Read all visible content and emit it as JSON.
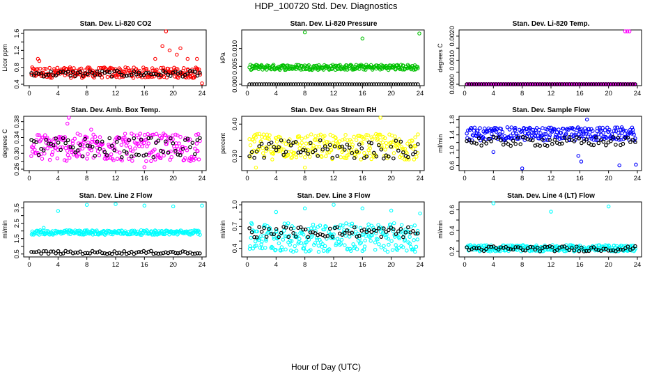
{
  "title": "HDP_100720  Std. Dev. Diagnostics",
  "xlabel": "Hour of Day (UTC)",
  "chart_data": [
    {
      "type": "scatter",
      "title": "Stan. Dev. Li-820 CO2",
      "ylabel": "Licor ppm",
      "color": "#ff0000",
      "secondary_color": "#000000",
      "xlim": [
        0,
        24
      ],
      "ylim": [
        0.4,
        1.65
      ],
      "xticks": [
        0,
        4,
        8,
        12,
        16,
        20,
        24
      ],
      "yticks": [
        0.4,
        0.6,
        0.8,
        1.0,
        1.2,
        1.4,
        1.6
      ],
      "ytick_labels": [
        "0.4",
        "",
        "0.8",
        "",
        "1.2",
        "",
        "1.6"
      ],
      "series_band": [
        0.55,
        0.8
      ],
      "secondary_band": [
        0.58,
        0.72
      ],
      "outliers": [
        [
          1.2,
          1.0
        ],
        [
          1.4,
          0.95
        ],
        [
          17.5,
          1.0
        ],
        [
          18.5,
          1.3
        ],
        [
          19,
          1.65
        ],
        [
          19.5,
          1.2
        ],
        [
          20.5,
          1.1
        ],
        [
          21,
          1.25
        ],
        [
          22,
          1.0
        ],
        [
          23.3,
          1.0
        ],
        [
          24,
          0.42
        ]
      ]
    },
    {
      "type": "scatter",
      "title": "Stan. Dev. Li-820 Pressure",
      "ylabel": "kPa",
      "color": "#00c000",
      "secondary_color": "#000000",
      "xlim": [
        0,
        24
      ],
      "ylim": [
        0,
        0.0148
      ],
      "xticks": [
        0,
        4,
        8,
        12,
        16,
        20,
        24
      ],
      "yticks": [
        0,
        0.005,
        0.01
      ],
      "ytick_labels": [
        "0.000",
        "0.005",
        "0.010"
      ],
      "series_band": [
        0.004,
        0.0055
      ],
      "secondary_band": [
        0,
        0.0
      ],
      "outliers": [
        [
          8,
          0.0145
        ],
        [
          16,
          0.0128
        ],
        [
          23.9,
          0.0142
        ]
      ]
    },
    {
      "type": "scatter",
      "title": "Stan. Dev. Li-820 Temp.",
      "ylabel": "degrees C",
      "color": "#ff00ff",
      "secondary_color": "#000000",
      "xlim": [
        0,
        24
      ],
      "ylim": [
        0,
        0.0022
      ],
      "xticks": [
        0,
        4,
        8,
        12,
        16,
        20,
        24
      ],
      "yticks": [
        0,
        0.0005,
        0.001,
        0.0015,
        0.002
      ],
      "ytick_labels": [
        "0.0000",
        "",
        "0.0010",
        "",
        "0.0020"
      ],
      "series_band": [
        0,
        0
      ],
      "secondary_band": [
        0,
        0
      ],
      "outliers": [
        [
          22.3,
          0.0022
        ],
        [
          22.6,
          0.0022
        ],
        [
          22.9,
          0.0022
        ]
      ]
    },
    {
      "type": "scatter",
      "title": "Stan. Dev. Amb. Box Temp.",
      "ylabel": "degrees C",
      "color": "#ff00ff",
      "secondary_color": "#000000",
      "xlim": [
        0,
        24
      ],
      "ylim": [
        0.26,
        0.39
      ],
      "xticks": [
        0,
        4,
        8,
        12,
        16,
        20,
        24
      ],
      "yticks": [
        0.26,
        0.28,
        0.3,
        0.32,
        0.34,
        0.36,
        0.38
      ],
      "ytick_labels": [
        "0.26",
        "",
        "0.30",
        "",
        "0.34",
        "",
        "0.38"
      ],
      "series_band": [
        0.28,
        0.35
      ],
      "secondary_band": [
        0.29,
        0.34
      ],
      "outliers": [
        [
          5.5,
          0.39
        ],
        [
          5.3,
          0.375
        ],
        [
          16,
          0.265
        ],
        [
          8.6,
          0.36
        ]
      ]
    },
    {
      "type": "scatter",
      "title": "Stan. Dev. Gas Stream RH",
      "ylabel": "percent",
      "color": "#ffff00",
      "secondary_color": "#000000",
      "xlim": [
        0,
        24
      ],
      "ylim": [
        0.26,
        0.42
      ],
      "xticks": [
        0,
        4,
        8,
        12,
        16,
        20,
        24
      ],
      "yticks": [
        0.3,
        0.35,
        0.4
      ],
      "ytick_labels": [
        "0.30",
        "",
        "0.40"
      ],
      "series_band": [
        0.29,
        0.37
      ],
      "secondary_band": [
        0.29,
        0.35
      ],
      "outliers": [
        [
          18.5,
          0.42
        ],
        [
          1.2,
          0.265
        ],
        [
          8,
          0.265
        ]
      ]
    },
    {
      "type": "scatter",
      "title": "Stan. Dev. Sample Flow",
      "ylabel": "ml/min",
      "color": "#0000ff",
      "secondary_color": "#000000",
      "xlim": [
        0,
        24
      ],
      "ylim": [
        0.5,
        1.85
      ],
      "xticks": [
        0,
        4,
        8,
        12,
        16,
        20,
        24
      ],
      "yticks": [
        0.6,
        0.8,
        1.0,
        1.2,
        1.4,
        1.6,
        1.8
      ],
      "ytick_labels": [
        "0.6",
        "",
        "1.0",
        "",
        "1.4",
        "",
        "1.8"
      ],
      "series_band": [
        1.25,
        1.6
      ],
      "secondary_band": [
        1.1,
        1.35
      ],
      "outliers": [
        [
          8,
          0.52
        ],
        [
          15.8,
          0.85
        ],
        [
          16.2,
          0.7
        ],
        [
          21.5,
          0.6
        ],
        [
          23.8,
          0.62
        ],
        [
          4,
          0.95
        ],
        [
          17,
          1.8
        ]
      ]
    },
    {
      "type": "scatter",
      "title": "Stan. Dev. Line 2 Flow",
      "ylabel": "ml/min",
      "color": "#00ffff",
      "secondary_color": "#000000",
      "xlim": [
        0,
        24
      ],
      "ylim": [
        0.4,
        3.8
      ],
      "xticks": [
        0,
        4,
        8,
        12,
        16,
        20,
        24
      ],
      "yticks": [
        0.5,
        1.0,
        1.5,
        2.0,
        2.5,
        3.0,
        3.5
      ],
      "ytick_labels": [
        "0.5",
        "",
        "1.5",
        "",
        "2.5",
        "",
        "3.5"
      ],
      "series_band": [
        1.75,
        2.05
      ],
      "secondary_band": [
        0.5,
        0.7
      ],
      "outliers": [
        [
          4,
          3.3
        ],
        [
          8,
          3.7
        ],
        [
          12,
          3.75
        ],
        [
          16,
          3.65
        ],
        [
          20,
          3.6
        ],
        [
          24,
          3.65
        ],
        [
          2,
          2.2
        ]
      ]
    },
    {
      "type": "scatter",
      "title": "Stan. Dev. Line 3 Flow",
      "ylabel": "ml/min",
      "color": "#00ffff",
      "secondary_color": "#000000",
      "xlim": [
        0,
        24
      ],
      "ylim": [
        0.3,
        1.02
      ],
      "xticks": [
        0,
        4,
        8,
        12,
        16,
        20,
        24
      ],
      "yticks": [
        0.4,
        0.5,
        0.6,
        0.7,
        0.8,
        0.9,
        1.0
      ],
      "ytick_labels": [
        "0.4",
        "",
        "",
        "0.7",
        "",
        "",
        "1.0"
      ],
      "series_band": [
        0.35,
        0.75
      ],
      "secondary_band": [
        0.55,
        0.7
      ],
      "outliers": [
        [
          4,
          0.9
        ],
        [
          8,
          0.95
        ],
        [
          12,
          1.0
        ],
        [
          16,
          0.95
        ],
        [
          20,
          0.92
        ],
        [
          24,
          0.88
        ]
      ]
    },
    {
      "type": "scatter",
      "title": "Stan. Dev. Line 4 (LT) Flow",
      "ylabel": "ml/min",
      "color": "#00ffff",
      "secondary_color": "#000000",
      "xlim": [
        0,
        24
      ],
      "ylim": [
        0.16,
        0.66
      ],
      "xticks": [
        0,
        4,
        8,
        12,
        16,
        20,
        24
      ],
      "yticks": [
        0.2,
        0.3,
        0.4,
        0.5,
        0.6
      ],
      "ytick_labels": [
        "0.2",
        "",
        "0.4",
        "",
        "0.6"
      ],
      "series_band": [
        0.2,
        0.26
      ],
      "secondary_band": [
        0.2,
        0.25
      ],
      "outliers": [
        [
          4,
          0.66
        ],
        [
          12,
          0.58
        ],
        [
          20,
          0.63
        ]
      ]
    }
  ]
}
